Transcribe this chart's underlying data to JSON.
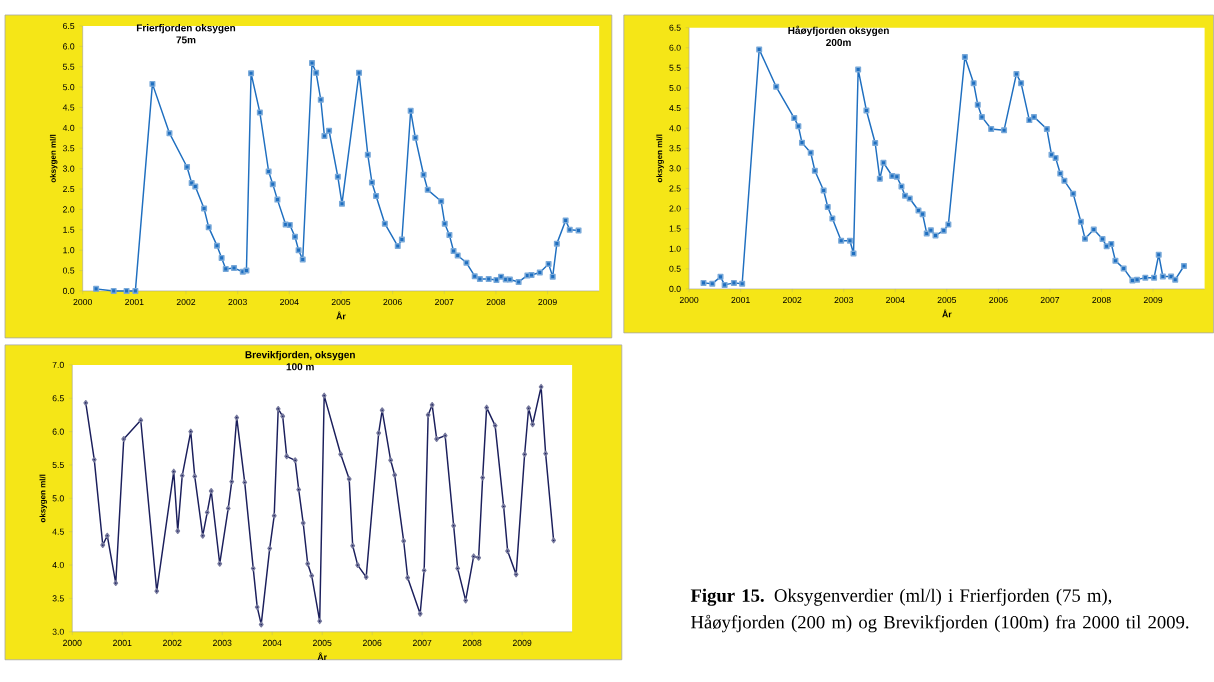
{
  "chart_data": [
    {
      "type": "line",
      "title": "Frierfjorden oksygen",
      "subtitle": "75m",
      "xlabel": "År",
      "ylabel": "oksygen ml/l",
      "marker": "square",
      "xlim": [
        2000,
        2010
      ],
      "ylim": [
        0,
        6.5
      ],
      "xticks": [
        2000,
        2001,
        2002,
        2003,
        2004,
        2005,
        2006,
        2007,
        2008,
        2009
      ],
      "yticks": [
        {
          "value": 0,
          "label": "0.0"
        },
        0.5,
        {
          "value": 1,
          "label": "1.0"
        },
        1.5,
        {
          "value": 2,
          "label": "2.0"
        },
        2.5,
        {
          "value": 3,
          "label": "3.0"
        },
        3.5,
        {
          "value": 4,
          "label": "4.0"
        },
        4.5,
        {
          "value": 5,
          "label": "5.0"
        },
        5.5,
        {
          "value": 6,
          "label": "6.0"
        },
        6.5
      ],
      "series": [
        {
          "color": "#1f6fc0",
          "x": [
            2000.26,
            2000.6,
            2000.85,
            2001.02,
            2001.35,
            2001.68,
            2002.02,
            2002.11,
            2002.18,
            2002.35,
            2002.44,
            2002.6,
            2002.69,
            2002.77,
            2002.93,
            2003.1,
            2003.17,
            2003.26,
            2003.43,
            2003.6,
            2003.68,
            2003.77,
            2003.93,
            2004.01,
            2004.11,
            2004.18,
            2004.26,
            2004.44,
            2004.52,
            2004.61,
            2004.68,
            2004.77,
            2004.94,
            2005.02,
            2005.35,
            2005.52,
            2005.6,
            2005.68,
            2005.85,
            2006.1,
            2006.18,
            2006.35,
            2006.44,
            2006.6,
            2006.68,
            2006.94,
            2007.01,
            2007.1,
            2007.18,
            2007.26,
            2007.43,
            2007.59,
            2007.69,
            2007.86,
            2008.01,
            2008.1,
            2008.19,
            2008.27,
            2008.44,
            2008.61,
            2008.69,
            2008.85,
            2009.02,
            2009.1,
            2009.18,
            2009.35,
            2009.43,
            2009.6
          ],
          "values": [
            0.05,
            0.0,
            0.0,
            0.0,
            5.08,
            3.87,
            3.04,
            2.65,
            2.56,
            2.02,
            1.56,
            1.11,
            0.81,
            0.54,
            0.56,
            0.47,
            0.5,
            5.34,
            4.38,
            2.93,
            2.62,
            2.24,
            1.63,
            1.62,
            1.33,
            1.0,
            0.77,
            5.59,
            5.35,
            4.69,
            3.8,
            3.93,
            2.8,
            2.14,
            5.35,
            3.34,
            2.66,
            2.33,
            1.65,
            1.1,
            1.26,
            4.42,
            3.76,
            2.85,
            2.48,
            2.2,
            1.65,
            1.37,
            0.98,
            0.87,
            0.69,
            0.36,
            0.29,
            0.29,
            0.27,
            0.35,
            0.28,
            0.28,
            0.22,
            0.38,
            0.39,
            0.45,
            0.66,
            0.35,
            1.16,
            1.73,
            1.5,
            1.48
          ]
        }
      ]
    },
    {
      "type": "line",
      "title": "Håøyfjorden oksygen",
      "subtitle": "200m",
      "xlabel": "År",
      "ylabel": "oksygen ml/l",
      "marker": "square",
      "xlim": [
        2000,
        2010
      ],
      "ylim": [
        0,
        6.5
      ],
      "xticks": [
        2000,
        2001,
        2002,
        2003,
        2004,
        2005,
        2006,
        2007,
        2008,
        2009
      ],
      "yticks": [
        {
          "value": 0,
          "label": "0.0"
        },
        0.5,
        {
          "value": 1,
          "label": "1.0"
        },
        1.5,
        {
          "value": 2,
          "label": "2.0"
        },
        2.5,
        {
          "value": 3,
          "label": "3.0"
        },
        3.5,
        {
          "value": 4,
          "label": "4.0"
        },
        4.5,
        {
          "value": 5,
          "label": "5.0"
        },
        5.5,
        {
          "value": 6,
          "label": "6.0"
        },
        6.5
      ],
      "series": [
        {
          "color": "#1f6fc0",
          "x": [
            2000.28,
            2000.45,
            2000.61,
            2000.69,
            2000.87,
            2001.03,
            2001.36,
            2001.69,
            2002.04,
            2002.12,
            2002.19,
            2002.36,
            2002.44,
            2002.61,
            2002.69,
            2002.78,
            2002.95,
            2003.12,
            2003.19,
            2003.28,
            2003.44,
            2003.61,
            2003.7,
            2003.77,
            2003.94,
            2004.03,
            2004.12,
            2004.19,
            2004.28,
            2004.45,
            2004.53,
            2004.61,
            2004.69,
            2004.78,
            2004.94,
            2005.03,
            2005.35,
            2005.52,
            2005.6,
            2005.68,
            2005.86,
            2006.11,
            2006.35,
            2006.44,
            2006.6,
            2006.69,
            2006.94,
            2007.03,
            2007.11,
            2007.2,
            2007.28,
            2007.45,
            2007.6,
            2007.68,
            2007.85,
            2008.02,
            2008.1,
            2008.19,
            2008.27,
            2008.43,
            2008.6,
            2008.69,
            2008.85,
            2009.02,
            2009.11,
            2009.19,
            2009.35,
            2009.43,
            2009.6
          ],
          "values": [
            0.15,
            0.13,
            0.3,
            0.1,
            0.15,
            0.13,
            5.96,
            5.03,
            4.25,
            4.05,
            3.64,
            3.39,
            2.94,
            2.45,
            2.04,
            1.75,
            1.2,
            1.2,
            0.88,
            5.46,
            4.44,
            3.63,
            2.74,
            3.14,
            2.81,
            2.79,
            2.55,
            2.32,
            2.25,
            1.95,
            1.86,
            1.38,
            1.46,
            1.33,
            1.45,
            1.6,
            5.77,
            5.12,
            4.58,
            4.28,
            3.98,
            3.95,
            5.35,
            5.12,
            4.2,
            4.28,
            3.98,
            3.34,
            3.26,
            2.87,
            2.69,
            2.37,
            1.67,
            1.25,
            1.48,
            1.24,
            1.06,
            1.12,
            0.7,
            0.51,
            0.21,
            0.23,
            0.28,
            0.28,
            0.85,
            0.31,
            0.31,
            0.23,
            0.57
          ]
        }
      ]
    },
    {
      "type": "line",
      "title": "Brevikfjorden, oksygen",
      "subtitle": "100 m",
      "xlabel": "År",
      "ylabel": "oksygen ml/l",
      "marker": "diamond",
      "xlim": [
        2000,
        2010
      ],
      "ylim": [
        3,
        7
      ],
      "xticks": [
        2000,
        2001,
        2002,
        2003,
        2004,
        2005,
        2006,
        2007,
        2008,
        2009
      ],
      "yticks": [
        {
          "value": 3,
          "label": "3.0"
        },
        3.5,
        {
          "value": 4,
          "label": "4.0"
        },
        4.5,
        {
          "value": 5,
          "label": "5.0"
        },
        5.5,
        {
          "value": 6,
          "label": "6.0"
        },
        6.5,
        {
          "value": 7,
          "label": "7.0"
        }
      ],
      "annotations": [
        "**Figur 15.** Oksygenverdier (ml/l) i Frierfjorden (75 m), Håøyfjorden (200 m) og Brevikfjorden (100m) fra 2000 til 2009."
      ],
      "series": [
        {
          "color": "#1b1f5c",
          "x": [
            2000.27,
            2000.44,
            2000.61,
            2000.7,
            2000.87,
            2001.03,
            2001.37,
            2001.69,
            2002.03,
            2002.11,
            2002.2,
            2002.37,
            2002.45,
            2002.61,
            2002.7,
            2002.78,
            2002.95,
            2003.12,
            2003.19,
            2003.29,
            2003.45,
            2003.62,
            2003.7,
            2003.78,
            2003.95,
            2004.04,
            2004.12,
            2004.21,
            2004.29,
            2004.46,
            2004.53,
            2004.62,
            2004.71,
            2004.79,
            2004.95,
            2005.04,
            2005.37,
            2005.54,
            2005.61,
            2005.71,
            2005.88,
            2006.13,
            2006.2,
            2006.37,
            2006.45,
            2006.63,
            2006.71,
            2006.96,
            2007.04,
            2007.12,
            2007.2,
            2007.29,
            2007.46,
            2007.63,
            2007.71,
            2007.87,
            2008.03,
            2008.13,
            2008.21,
            2008.29,
            2008.46,
            2008.63,
            2008.71,
            2008.88,
            2009.05,
            2009.13,
            2009.21,
            2009.38,
            2009.47,
            2009.63
          ],
          "values": [
            6.43,
            5.58,
            4.3,
            4.44,
            3.73,
            5.89,
            6.17,
            3.61,
            5.4,
            4.51,
            5.34,
            6.0,
            5.33,
            4.44,
            4.79,
            5.11,
            4.02,
            4.85,
            5.25,
            6.21,
            5.24,
            3.95,
            3.37,
            3.11,
            4.25,
            4.74,
            6.34,
            6.23,
            5.63,
            5.57,
            5.13,
            4.63,
            4.02,
            3.84,
            3.16,
            6.54,
            5.66,
            5.29,
            4.29,
            4.0,
            3.82,
            5.98,
            6.32,
            5.57,
            5.35,
            4.36,
            3.81,
            3.27,
            3.92,
            6.25,
            6.4,
            5.89,
            5.94,
            4.59,
            3.95,
            3.47,
            4.13,
            4.11,
            5.31,
            6.36,
            6.09,
            4.88,
            4.21,
            3.86,
            5.66,
            6.35,
            6.11,
            6.67,
            5.67,
            4.37
          ]
        }
      ]
    }
  ]
}
